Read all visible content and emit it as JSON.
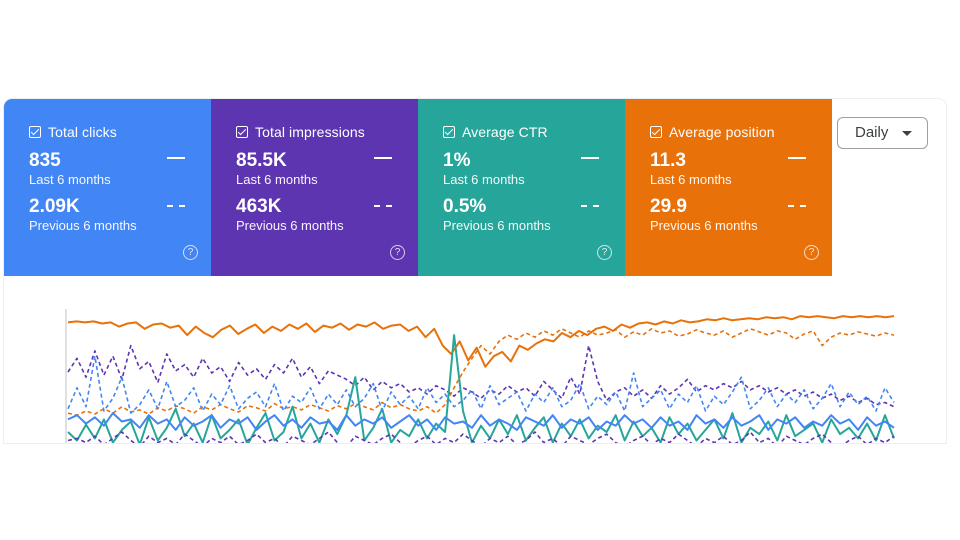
{
  "period_selector": {
    "label": "Daily"
  },
  "metrics": [
    {
      "key": "clicks",
      "title": "Total clicks",
      "value": "835",
      "value_label": "Last 6 months",
      "prev_value": "2.09K",
      "prev_label": "Previous 6 months",
      "color": "#4285f4",
      "checked": true,
      "help_icon": "help-circle-icon"
    },
    {
      "key": "impressions",
      "title": "Total impressions",
      "value": "85.5K",
      "value_label": "Last 6 months",
      "prev_value": "463K",
      "prev_label": "Previous 6 months",
      "color": "#5e35b1",
      "checked": true,
      "help_icon": "help-circle-icon"
    },
    {
      "key": "ctr",
      "title": "Average CTR",
      "value": "1%",
      "value_label": "Last 6 months",
      "prev_value": "0.5%",
      "prev_label": "Previous 6 months",
      "color": "#26a69a",
      "checked": true,
      "help_icon": "help-circle-icon"
    },
    {
      "key": "position",
      "title": "Average position",
      "value": "11.3",
      "value_label": "Last 6 months",
      "prev_value": "29.9",
      "prev_label": "Previous 6 months",
      "color": "#e8710a",
      "checked": true,
      "help_icon": "help-circle-icon"
    }
  ],
  "chart_data": {
    "type": "line",
    "series": [
      {
        "metric": "position",
        "period": "current",
        "style": "solid",
        "color": "#e8710a",
        "values": [
          8,
          7,
          8,
          7,
          9,
          8,
          12,
          9,
          8,
          14,
          10,
          9,
          13,
          11,
          20,
          12,
          18,
          22,
          15,
          11,
          19,
          14,
          10,
          18,
          12,
          16,
          10,
          14,
          9,
          17,
          11,
          13,
          9,
          15,
          10,
          12,
          8,
          14,
          11,
          10,
          16,
          12,
          22,
          14,
          30,
          38,
          26,
          44,
          32,
          50,
          40,
          36,
          45,
          30,
          34,
          28,
          24,
          26,
          18,
          22,
          16,
          20,
          14,
          12,
          16,
          10,
          13,
          9,
          8,
          10,
          7,
          9,
          6,
          8,
          7,
          5,
          6,
          4,
          6,
          5,
          4,
          5,
          3,
          4,
          3,
          5,
          2,
          3,
          2,
          3,
          4,
          2,
          3,
          2,
          3,
          2,
          3,
          2
        ]
      },
      {
        "metric": "position",
        "period": "previous",
        "style": "dashed",
        "color": "#e8710a",
        "values": [
          94,
          96,
          92,
          95,
          90,
          94,
          88,
          93,
          91,
          95,
          89,
          92,
          87,
          90,
          94,
          88,
          91,
          86,
          90,
          93,
          87,
          89,
          92,
          85,
          90,
          88,
          91,
          86,
          89,
          92,
          87,
          90,
          85,
          88,
          91,
          84,
          89,
          86,
          90,
          92,
          88,
          94,
          86,
          70,
          55,
          42,
          30,
          38,
          26,
          20,
          24,
          18,
          22,
          16,
          20,
          14,
          18,
          22,
          16,
          20,
          18,
          15,
          22,
          17,
          20,
          14,
          18,
          16,
          21,
          19,
          15,
          18,
          20,
          16,
          22,
          18,
          14,
          17,
          20,
          16,
          18,
          24,
          19,
          16,
          30,
          22,
          18,
          20,
          17,
          19,
          21,
          18,
          20
        ]
      },
      {
        "metric": "impressions",
        "period": "current",
        "style": "dashed",
        "color": "#5e35b1",
        "values": [
          55,
          42,
          60,
          35,
          58,
          40,
          62,
          30,
          52,
          45,
          65,
          38,
          54,
          48,
          60,
          42,
          56,
          50,
          64,
          46,
          58,
          52,
          62,
          48,
          56,
          42,
          60,
          50,
          66,
          54,
          58,
          62,
          68,
          60,
          72,
          64,
          70,
          66,
          74,
          70,
          76,
          68,
          72,
          78,
          70,
          74,
          80,
          72,
          76,
          68,
          74,
          70,
          78,
          64,
          72,
          80,
          60,
          76,
          30,
          64,
          82,
          74,
          70,
          78,
          72,
          80,
          68,
          76,
          70,
          62,
          74,
          68,
          72,
          66,
          70,
          64,
          72,
          68,
          74,
          70,
          76,
          72,
          78,
          74,
          80,
          76,
          82,
          78,
          84,
          80,
          86,
          84,
          88
        ]
      },
      {
        "metric": "ctr",
        "period": "current",
        "style": "solid",
        "color": "#26a69a",
        "values": [
          112,
          120,
          105,
          118,
          100,
          122,
          110,
          102,
          124,
          98,
          120,
          108,
          90,
          116,
          104,
          122,
          96,
          118,
          110,
          100,
          124,
          108,
          94,
          120,
          112,
          88,
          118,
          104,
          122,
          100,
          114,
          96,
          60,
          120,
          108,
          90,
          122,
          110,
          116,
          100,
          118,
          104,
          112,
          20,
          92,
          122,
          106,
          118,
          100,
          114,
          96,
          120,
          108,
          98,
          122,
          104,
          116,
          100,
          118,
          106,
          112,
          96,
          120,
          102,
          116,
          108,
          122,
          98,
          114,
          104,
          120,
          110,
          100,
          118,
          94,
          122,
          108,
          114,
          102,
          120,
          96,
          116,
          110,
          104,
          122,
          100,
          114,
          108,
          118,
          104,
          120,
          96,
          118
        ]
      },
      {
        "metric": "clicks",
        "period": "current",
        "style": "solid",
        "color": "#4285f4",
        "values": [
          100,
          96,
          104,
          98,
          106,
          94,
          102,
          100,
          108,
          96,
          104,
          100,
          110,
          98,
          106,
          102,
          96,
          108,
          100,
          104,
          98,
          110,
          102,
          96,
          106,
          100,
          108,
          98,
          104,
          102,
          110,
          96,
          106,
          100,
          104,
          98,
          108,
          102,
          96,
          106,
          100,
          110,
          98,
          104,
          102,
          108,
          96,
          106,
          100,
          104,
          110,
          98,
          102,
          106,
          96,
          108,
          100,
          104,
          98,
          110,
          102,
          106,
          96,
          104,
          100,
          108,
          98,
          106,
          102,
          110,
          96,
          104,
          100,
          108,
          98,
          106,
          102,
          96,
          110,
          100,
          104,
          98,
          108,
          102,
          106,
          96,
          104,
          100,
          110,
          98,
          106,
          102,
          108
        ]
      },
      {
        "metric": "clicks",
        "period": "previous",
        "style": "dashed",
        "color": "#4285f4",
        "values": [
          90,
          70,
          88,
          40,
          92,
          80,
          60,
          94,
          86,
          72,
          90,
          64,
          88,
          82,
          70,
          92,
          76,
          86,
          68,
          90,
          80,
          74,
          88,
          66,
          92,
          78,
          84,
          70,
          90,
          76,
          86,
          72,
          88,
          80,
          66,
          92,
          74,
          86,
          78,
          90,
          70,
          84,
          76,
          88,
          82,
          72,
          90,
          68,
          86,
          80,
          74,
          92,
          76,
          84,
          70,
          88,
          82,
          66,
          90,
          78,
          86,
          74,
          92,
          56,
          88,
          80,
          72,
          90,
          76,
          84,
          68,
          92,
          78,
          86,
          74,
          60,
          90,
          82,
          70,
          88,
          76,
          84,
          72,
          90,
          80,
          66,
          88,
          74,
          86,
          78,
          92,
          70,
          84
        ]
      },
      {
        "metric": "impressions",
        "period": "previous",
        "style": "dashed",
        "color": "#5e35b1",
        "values": [
          120,
          118,
          122,
          116,
          124,
          118,
          112,
          120,
          126,
          116,
          122,
          118,
          124,
          114,
          120,
          126,
          118,
          122,
          116,
          124,
          120,
          114,
          122,
          118,
          126,
          116,
          120,
          124,
          118,
          112,
          122,
          126,
          116,
          120,
          124,
          118,
          114,
          122,
          126,
          120,
          116,
          124,
          118,
          122,
          114,
          120,
          126,
          118,
          122,
          116,
          124,
          120,
          112,
          122,
          118,
          126,
          116,
          120,
          124,
          118,
          114,
          122,
          126,
          120,
          116,
          124,
          118,
          122,
          114,
          120,
          126,
          118,
          122,
          116,
          124,
          120,
          112,
          122,
          118,
          126,
          116,
          120,
          124,
          118,
          114,
          122,
          126,
          120,
          116,
          124,
          118,
          122,
          116
        ]
      }
    ],
    "y_axis_visible": true,
    "grid": false
  }
}
